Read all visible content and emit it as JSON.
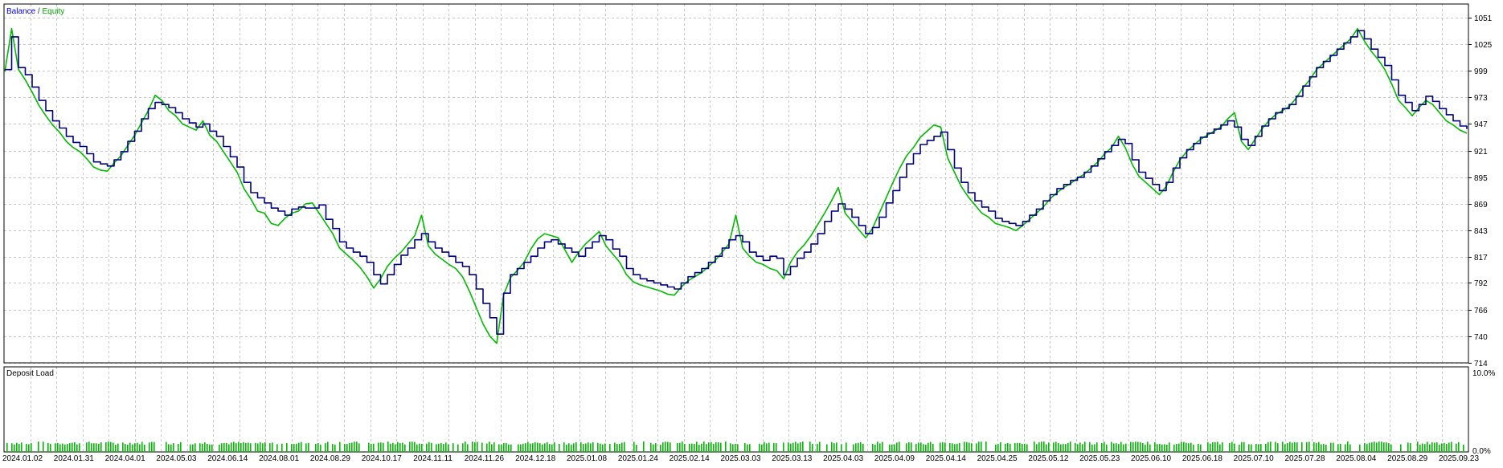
{
  "chart_data": [
    {
      "type": "line",
      "title": "",
      "legend": [
        {
          "name": "Balance",
          "color": "#0000ff"
        },
        {
          "name": "Equity",
          "color": "#00aa00"
        }
      ],
      "legend_separator": " / ",
      "ylim": [
        714,
        1064
      ],
      "yticks": [
        1051,
        1025,
        999,
        973,
        947,
        921,
        895,
        869,
        843,
        817,
        792,
        766,
        740,
        714
      ],
      "grid": true,
      "x_tick_labels": [
        "2024.01.02",
        "2024.01.31",
        "2024.04.01",
        "2024.05.03",
        "2024.06.14",
        "2024.08.01",
        "2024.08.29",
        "2024.10.17",
        "2024.11.11",
        "2024.11.26",
        "2024.12.18",
        "2025.01.08",
        "2025.01.24",
        "2025.02.14",
        "2025.03.03",
        "2025.03.13",
        "2025.04.03",
        "2025.04.09",
        "2025.04.14",
        "2025.04.25",
        "2025.05.12",
        "2025.05.23",
        "2025.06.10",
        "2025.06.18",
        "2025.07.10",
        "2025.07.28",
        "2025.08.04",
        "2025.08.29",
        "2025.09.23"
      ],
      "series": [
        {
          "name": "Balance",
          "color": "#000080",
          "values": [
            1000,
            1032,
            1002,
            995,
            983,
            970,
            960,
            950,
            943,
            935,
            929,
            925,
            918,
            910,
            908,
            906,
            912,
            920,
            930,
            940,
            952,
            962,
            968,
            966,
            963,
            958,
            952,
            948,
            944,
            947,
            940,
            935,
            925,
            915,
            905,
            890,
            880,
            875,
            870,
            865,
            862,
            858,
            864,
            866,
            865,
            865,
            868,
            854,
            845,
            832,
            826,
            822,
            818,
            812,
            800,
            791,
            800,
            810,
            819,
            826,
            834,
            840,
            832,
            826,
            822,
            818,
            812,
            808,
            800,
            786,
            772,
            758,
            742,
            782,
            800,
            806,
            812,
            818,
            826,
            832,
            834,
            830,
            826,
            822,
            818,
            826,
            832,
            838,
            834,
            825,
            818,
            806,
            800,
            796,
            794,
            792,
            790,
            788,
            786,
            792,
            798,
            802,
            806,
            812,
            818,
            826,
            834,
            838,
            832,
            822,
            818,
            814,
            818,
            816,
            800,
            808,
            816,
            822,
            830,
            840,
            852,
            862,
            869,
            864,
            856,
            848,
            840,
            846,
            856,
            870,
            882,
            895,
            908,
            918,
            927,
            931,
            935,
            939,
            922,
            904,
            890,
            880,
            872,
            866,
            862,
            855,
            852,
            850,
            848,
            852,
            858,
            864,
            872,
            878,
            884,
            888,
            892,
            895,
            900,
            906,
            913,
            920,
            926,
            932,
            928,
            912,
            900,
            894,
            888,
            882,
            890,
            904,
            914,
            922,
            928,
            934,
            938,
            942,
            946,
            950,
            944,
            932,
            926,
            935,
            945,
            952,
            958,
            962,
            966,
            974,
            984,
            993,
            1002,
            1008,
            1014,
            1020,
            1026,
            1032,
            1038,
            1030,
            1020,
            1012,
            1004,
            990,
            975,
            968,
            960,
            966,
            974,
            969,
            962,
            956,
            950,
            945,
            942
          ]
        },
        {
          "name": "Equity",
          "color": "#00bb00",
          "values": [
            998,
            1040,
            1000,
            990,
            978,
            965,
            955,
            946,
            939,
            930,
            924,
            920,
            913,
            905,
            902,
            901,
            909,
            916,
            926,
            936,
            948,
            960,
            975,
            970,
            960,
            955,
            947,
            944,
            941,
            950,
            936,
            930,
            920,
            910,
            900,
            884,
            874,
            862,
            860,
            850,
            848,
            855,
            860,
            862,
            869,
            870,
            860,
            850,
            840,
            826,
            820,
            814,
            807,
            798,
            787,
            796,
            808,
            816,
            822,
            830,
            838,
            858,
            828,
            820,
            815,
            810,
            806,
            798,
            784,
            768,
            752,
            740,
            733,
            780,
            797,
            804,
            812,
            825,
            835,
            840,
            838,
            836,
            824,
            812,
            822,
            830,
            836,
            842,
            828,
            820,
            812,
            800,
            793,
            790,
            788,
            786,
            784,
            781,
            780,
            788,
            794,
            798,
            802,
            808,
            814,
            822,
            830,
            858,
            826,
            818,
            812,
            810,
            806,
            804,
            796,
            812,
            822,
            829,
            838,
            849,
            860,
            872,
            885,
            860,
            852,
            844,
            836,
            845,
            860,
            875,
            890,
            904,
            916,
            924,
            934,
            940,
            946,
            944,
            914,
            900,
            886,
            876,
            868,
            860,
            856,
            850,
            848,
            846,
            843,
            848,
            854,
            860,
            866,
            874,
            880,
            885,
            889,
            894,
            898,
            904,
            910,
            918,
            924,
            935,
            924,
            908,
            896,
            890,
            884,
            878,
            886,
            900,
            912,
            920,
            926,
            932,
            936,
            940,
            944,
            952,
            958,
            930,
            922,
            932,
            942,
            950,
            956,
            960,
            964,
            972,
            982,
            990,
            1000,
            1006,
            1012,
            1018,
            1024,
            1030,
            1040,
            1028,
            1018,
            1010,
            1000,
            986,
            970,
            963,
            955,
            963,
            970,
            966,
            958,
            950,
            946,
            941,
            938
          ]
        }
      ]
    },
    {
      "type": "bar",
      "title": "Deposit Load",
      "ylim": [
        0,
        10
      ],
      "ytick_labels": [
        "10.0%",
        "0.0%"
      ],
      "color": "#00bb00"
    }
  ]
}
